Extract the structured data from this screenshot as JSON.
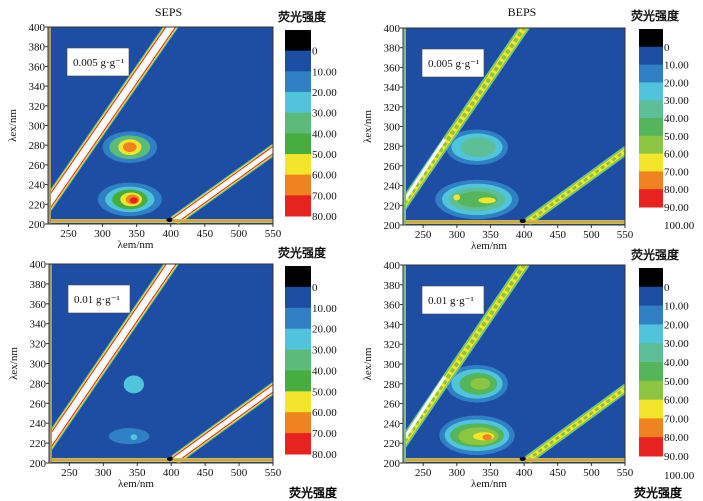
{
  "chart_data": [
    {
      "type": "heatmap",
      "title": "SEPS",
      "annotation": "0.005 g·g⁻¹",
      "xlabel": "λem/nm",
      "ylabel": "λex/nm",
      "xlim": [
        220,
        550
      ],
      "ylim": [
        200,
        400
      ],
      "xticks": [
        250,
        300,
        350,
        400,
        450,
        500,
        550
      ],
      "yticks": [
        200,
        220,
        240,
        260,
        280,
        300,
        320,
        340,
        360,
        380,
        400
      ],
      "colorbar": {
        "title": "荧光强度",
        "labels": [
          "0",
          "10.00",
          "20.00",
          "30.00",
          "40.00",
          "50.00",
          "60.00",
          "70.00",
          "80.00"
        ],
        "colors": [
          "#000000",
          "#1e4ea3",
          "#2f80c4",
          "#4fc4da",
          "#5dbb7a",
          "#45ae3e",
          "#f2e52b",
          "#f0831f",
          "#e6231f"
        ]
      },
      "peaks": [
        {
          "em": 345,
          "ex": 255,
          "r_em": 72,
          "r_ex": 47,
          "level": 1
        },
        {
          "em": 340,
          "ex": 278,
          "r_em": 40,
          "r_ex": 16,
          "level": 2
        },
        {
          "em": 340,
          "ex": 278,
          "r_em": 30,
          "r_ex": 12,
          "level": 4
        },
        {
          "em": 340,
          "ex": 278,
          "r_em": 17,
          "r_ex": 8,
          "level": 6
        },
        {
          "em": 340,
          "ex": 278,
          "r_em": 10,
          "r_ex": 5,
          "level": 7
        },
        {
          "em": 340,
          "ex": 225,
          "r_em": 47,
          "r_ex": 17,
          "level": 2
        },
        {
          "em": 340,
          "ex": 225,
          "r_em": 36,
          "r_ex": 13,
          "level": 3
        },
        {
          "em": 340,
          "ex": 225,
          "r_em": 26,
          "r_ex": 10,
          "level": 5
        },
        {
          "em": 342,
          "ex": 225,
          "r_em": 16,
          "r_ex": 7,
          "level": 6
        },
        {
          "em": 344,
          "ex": 225,
          "r_em": 10,
          "r_ex": 5,
          "level": 7
        },
        {
          "em": 346,
          "ex": 224,
          "r_em": 6,
          "r_ex": 3,
          "level": 8
        }
      ],
      "scatter_style": "white"
    },
    {
      "type": "heatmap",
      "title": "BEPS",
      "annotation": "0.005 g·g⁻¹",
      "xlabel": "λem/nm",
      "ylabel": "λex/nm",
      "xlim": [
        220,
        550
      ],
      "ylim": [
        200,
        400
      ],
      "xticks": [
        250,
        300,
        350,
        400,
        450,
        500,
        550
      ],
      "yticks": [
        200,
        220,
        240,
        260,
        280,
        300,
        320,
        340,
        360,
        380,
        400
      ],
      "colorbar": {
        "title": "荧光强度",
        "labels": [
          "0",
          "10.00",
          "20.00",
          "30.00",
          "40.00",
          "50.00",
          "60.00",
          "70.00",
          "80.00",
          "90.00",
          "100.00"
        ],
        "colors": [
          "#000000",
          "#1e4ea3",
          "#2f80c4",
          "#4fc4da",
          "#5cbf98",
          "#55b55a",
          "#8cc540",
          "#f2e52b",
          "#f0831f",
          "#e6231f"
        ]
      },
      "peaks": [
        {
          "em": 350,
          "ex": 255,
          "r_em": 85,
          "r_ex": 47,
          "level": 1
        },
        {
          "em": 330,
          "ex": 279,
          "r_em": 46,
          "r_ex": 18,
          "level": 2
        },
        {
          "em": 330,
          "ex": 279,
          "r_em": 38,
          "r_ex": 14,
          "level": 3
        },
        {
          "em": 332,
          "ex": 279,
          "r_em": 26,
          "r_ex": 10,
          "level": 4
        },
        {
          "em": 330,
          "ex": 226,
          "r_em": 62,
          "r_ex": 20,
          "level": 2
        },
        {
          "em": 330,
          "ex": 226,
          "r_em": 52,
          "r_ex": 16,
          "level": 3
        },
        {
          "em": 330,
          "ex": 226,
          "r_em": 42,
          "r_ex": 12,
          "level": 4
        },
        {
          "em": 330,
          "ex": 226,
          "r_em": 30,
          "r_ex": 8,
          "level": 5
        },
        {
          "em": 300,
          "ex": 228,
          "r_em": 5,
          "r_ex": 3,
          "level": 7
        },
        {
          "em": 345,
          "ex": 225,
          "r_em": 13,
          "r_ex": 3,
          "level": 7
        }
      ],
      "scatter_style": "green"
    },
    {
      "type": "heatmap",
      "title": "",
      "annotation": "0.01 g·g⁻¹",
      "xlabel": "λem/nm",
      "ylabel": "λex/nm",
      "xlim": [
        220,
        550
      ],
      "ylim": [
        200,
        400
      ],
      "xticks": [
        250,
        300,
        350,
        400,
        450,
        500,
        550
      ],
      "yticks": [
        200,
        220,
        240,
        260,
        280,
        300,
        320,
        340,
        360,
        380,
        400
      ],
      "colorbar": {
        "title": "荧光强度",
        "labels": [
          "0",
          "10.00",
          "20.00",
          "30.00",
          "40.00",
          "50.00",
          "60.00",
          "70.00",
          "80.00"
        ],
        "colors": [
          "#000000",
          "#1e4ea3",
          "#2f80c4",
          "#4fc4da",
          "#5dbb7a",
          "#45ae3e",
          "#f2e52b",
          "#f0831f",
          "#e6231f"
        ]
      },
      "peaks": [
        {
          "em": 340,
          "ex": 252,
          "r_em": 80,
          "r_ex": 50,
          "level": 1
        },
        {
          "em": 345,
          "ex": 279,
          "r_em": 15,
          "r_ex": 9,
          "level": 3
        },
        {
          "em": 338,
          "ex": 227,
          "r_em": 30,
          "r_ex": 8,
          "level": 2
        },
        {
          "em": 345,
          "ex": 226,
          "r_em": 5,
          "r_ex": 3,
          "level": 3
        }
      ],
      "scatter_style": "white"
    },
    {
      "type": "heatmap",
      "title": "",
      "annotation": "0.01 g·g⁻¹",
      "xlabel": "λem/nm",
      "ylabel": "λex/nm",
      "xlim": [
        220,
        550
      ],
      "ylim": [
        200,
        400
      ],
      "xticks": [
        250,
        300,
        350,
        400,
        450,
        500,
        550
      ],
      "yticks": [
        200,
        220,
        240,
        260,
        280,
        300,
        320,
        340,
        360,
        380,
        400
      ],
      "colorbar": {
        "title": "荧光强度",
        "labels": [
          "0",
          "10.00",
          "20.00",
          "30.00",
          "40.00",
          "50.00",
          "60.00",
          "70.00",
          "80.00",
          "90.00",
          "100.00"
        ],
        "colors": [
          "#000000",
          "#1e4ea3",
          "#2f80c4",
          "#4fc4da",
          "#5cbf98",
          "#55b55a",
          "#8cc540",
          "#f2e52b",
          "#f0831f",
          "#e6231f"
        ]
      },
      "peaks": [
        {
          "em": 345,
          "ex": 257,
          "r_em": 85,
          "r_ex": 50,
          "level": 1
        },
        {
          "em": 330,
          "ex": 280,
          "r_em": 46,
          "r_ex": 19,
          "level": 2
        },
        {
          "em": 330,
          "ex": 280,
          "r_em": 38,
          "r_ex": 15,
          "level": 3
        },
        {
          "em": 332,
          "ex": 280,
          "r_em": 28,
          "r_ex": 11,
          "level": 5
        },
        {
          "em": 335,
          "ex": 280,
          "r_em": 15,
          "r_ex": 6,
          "level": 6
        },
        {
          "em": 330,
          "ex": 228,
          "r_em": 56,
          "r_ex": 20,
          "level": 2
        },
        {
          "em": 330,
          "ex": 228,
          "r_em": 48,
          "r_ex": 16,
          "level": 3
        },
        {
          "em": 330,
          "ex": 228,
          "r_em": 40,
          "r_ex": 12,
          "level": 5
        },
        {
          "em": 332,
          "ex": 227,
          "r_em": 30,
          "r_ex": 9,
          "level": 6
        },
        {
          "em": 340,
          "ex": 227,
          "r_em": 16,
          "r_ex": 4,
          "level": 7
        },
        {
          "em": 345,
          "ex": 226,
          "r_em": 7,
          "r_ex": 3,
          "level": 8
        }
      ],
      "scatter_style": "green"
    }
  ],
  "footer_cut_labels": [
    "荧光强度",
    "荧光强度"
  ]
}
